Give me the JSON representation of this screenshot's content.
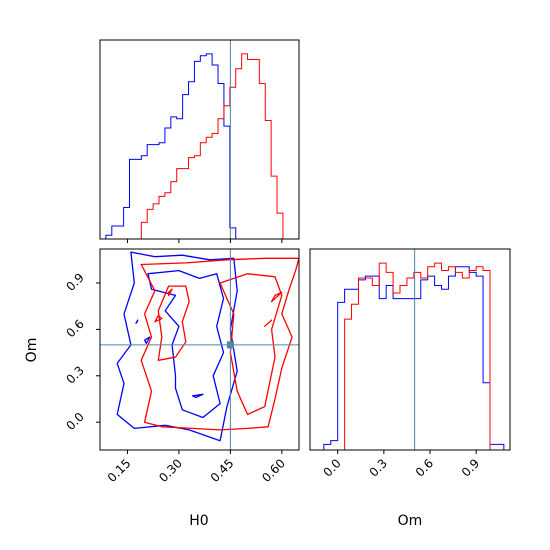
{
  "chart_data": {
    "type": "corner",
    "parameters": [
      "H0",
      "Om"
    ],
    "truth": {
      "H0": 0.45,
      "Om": 0.5
    },
    "colors": {
      "series_a": "#0000ff",
      "series_b": "#ff0000",
      "truth": "#4c86aa"
    },
    "axes": {
      "H0": {
        "range": [
          0.07,
          0.65
        ],
        "ticks": [
          0.15,
          0.3,
          0.45,
          0.6
        ],
        "tick_labels": [
          "0.15",
          "0.30",
          "0.45",
          "0.60"
        ]
      },
      "Om": {
        "range": [
          -0.18,
          1.12
        ],
        "ticks": [
          0.0,
          0.3,
          0.6,
          0.9
        ],
        "tick_labels": [
          "0.0",
          "0.3",
          "0.6",
          "0.9"
        ]
      }
    },
    "hist_H0": {
      "bin_edges": [
        0.07,
        0.0872,
        0.1044,
        0.1216,
        0.1388,
        0.156,
        0.1732,
        0.1904,
        0.2076,
        0.2248,
        0.242,
        0.2592,
        0.2764,
        0.2936,
        0.3108,
        0.328,
        0.3452,
        0.3624,
        0.3796,
        0.3968,
        0.414,
        0.4312,
        0.4484,
        0.4656,
        0.4828,
        0.5,
        0.5172,
        0.5344,
        0.5516,
        0.5688,
        0.586,
        0.6032,
        0.6204,
        0.6376
      ],
      "series": [
        {
          "color": "blue",
          "values": [
            0.0,
            0.02,
            0.07,
            0.07,
            0.17,
            0.43,
            0.43,
            0.45,
            0.51,
            0.51,
            0.52,
            0.6,
            0.66,
            0.65,
            0.78,
            0.85,
            0.96,
            0.99,
            1.0,
            0.94,
            0.84,
            0.61,
            0.06,
            0.0,
            0.0,
            0.0,
            0.0,
            0.0,
            0.0,
            0.0,
            0.0,
            0.0,
            0.0
          ]
        },
        {
          "color": "red",
          "values": [
            0.0,
            0.0,
            0.0,
            0.0,
            0.0,
            0.0,
            0.0,
            0.09,
            0.16,
            0.19,
            0.23,
            0.25,
            0.31,
            0.38,
            0.38,
            0.44,
            0.45,
            0.52,
            0.55,
            0.57,
            0.65,
            0.72,
            0.82,
            0.92,
            1.0,
            0.97,
            0.97,
            0.84,
            0.64,
            0.34,
            0.14,
            0.0,
            0.0
          ]
        }
      ]
    },
    "hist_Om": {
      "bin_edges": [
        -0.18,
        -0.135,
        -0.09,
        -0.045,
        0.0,
        0.045,
        0.09,
        0.135,
        0.18,
        0.225,
        0.27,
        0.315,
        0.36,
        0.405,
        0.45,
        0.495,
        0.54,
        0.585,
        0.63,
        0.675,
        0.72,
        0.765,
        0.81,
        0.855,
        0.9,
        0.945,
        0.99,
        1.035,
        1.08,
        1.125
      ],
      "series": [
        {
          "color": "blue",
          "values": [
            0.0,
            0.0,
            0.03,
            0.05,
            0.79,
            0.86,
            0.86,
            0.91,
            0.93,
            0.93,
            0.81,
            0.88,
            0.81,
            0.81,
            0.81,
            0.81,
            0.91,
            0.93,
            0.88,
            0.86,
            0.93,
            0.98,
            0.98,
            0.95,
            0.93,
            0.36,
            0.03,
            0.03,
            0.0
          ]
        },
        {
          "color": "red",
          "values": [
            0.0,
            0.0,
            0.0,
            0.0,
            0.0,
            0.7,
            0.78,
            0.92,
            0.92,
            0.88,
            1.0,
            0.95,
            0.84,
            0.88,
            0.92,
            0.95,
            0.92,
            0.98,
            1.0,
            0.96,
            0.98,
            0.95,
            0.92,
            0.96,
            0.98,
            0.96,
            0.0,
            0.0,
            0.0
          ]
        }
      ]
    },
    "contours_2d": [
      {
        "color": "blue",
        "level": "outer",
        "points": [
          [
            0.16,
            1.1
          ],
          [
            0.23,
            1.07
          ],
          [
            0.31,
            1.08
          ],
          [
            0.39,
            1.05
          ],
          [
            0.46,
            1.06
          ],
          [
            0.47,
            0.85
          ],
          [
            0.45,
            0.6
          ],
          [
            0.47,
            0.33
          ],
          [
            0.44,
            0.1
          ],
          [
            0.42,
            -0.12
          ],
          [
            0.33,
            -0.05
          ],
          [
            0.26,
            -0.02
          ],
          [
            0.17,
            -0.04
          ],
          [
            0.12,
            0.05
          ],
          [
            0.14,
            0.25
          ],
          [
            0.12,
            0.38
          ],
          [
            0.16,
            0.5
          ],
          [
            0.14,
            0.7
          ],
          [
            0.17,
            0.9
          ],
          [
            0.16,
            1.1
          ]
        ]
      },
      {
        "color": "blue",
        "level": "inner",
        "points": [
          [
            0.21,
            0.96
          ],
          [
            0.3,
            0.98
          ],
          [
            0.36,
            0.93
          ],
          [
            0.41,
            0.96
          ],
          [
            0.43,
            0.8
          ],
          [
            0.41,
            0.62
          ],
          [
            0.43,
            0.45
          ],
          [
            0.4,
            0.3
          ],
          [
            0.42,
            0.12
          ],
          [
            0.37,
            0.03
          ],
          [
            0.31,
            0.08
          ],
          [
            0.29,
            0.22
          ],
          [
            0.29,
            0.3
          ],
          [
            0.28,
            0.5
          ],
          [
            0.3,
            0.62
          ],
          [
            0.26,
            0.72
          ],
          [
            0.29,
            0.82
          ],
          [
            0.22,
            0.86
          ],
          [
            0.21,
            0.96
          ]
        ]
      },
      {
        "color": "red",
        "level": "outer",
        "points": [
          [
            0.19,
            1.02
          ],
          [
            0.32,
            1.03
          ],
          [
            0.44,
            1.05
          ],
          [
            0.55,
            1.06
          ],
          [
            0.65,
            1.06
          ],
          [
            0.64,
            0.98
          ],
          [
            0.62,
            0.85
          ],
          [
            0.6,
            0.7
          ],
          [
            0.63,
            0.55
          ],
          [
            0.6,
            0.35
          ],
          [
            0.58,
            0.15
          ],
          [
            0.56,
            -0.03
          ],
          [
            0.5,
            -0.04
          ],
          [
            0.42,
            -0.05
          ],
          [
            0.34,
            -0.04
          ],
          [
            0.25,
            -0.03
          ],
          [
            0.2,
            0.0
          ],
          [
            0.22,
            0.2
          ],
          [
            0.19,
            0.4
          ],
          [
            0.22,
            0.55
          ],
          [
            0.2,
            0.7
          ],
          [
            0.23,
            0.85
          ],
          [
            0.19,
            1.02
          ]
        ]
      },
      {
        "color": "red",
        "level": "inner",
        "points": [
          [
            0.42,
            0.9
          ],
          [
            0.5,
            0.96
          ],
          [
            0.58,
            0.94
          ],
          [
            0.6,
            0.82
          ],
          [
            0.57,
            0.6
          ],
          [
            0.58,
            0.42
          ],
          [
            0.55,
            0.1
          ],
          [
            0.5,
            0.05
          ],
          [
            0.47,
            0.2
          ],
          [
            0.45,
            0.45
          ],
          [
            0.46,
            0.7
          ],
          [
            0.44,
            0.8
          ],
          [
            0.42,
            0.9
          ]
        ]
      },
      {
        "color": "red",
        "level": "island",
        "points": [
          [
            0.29,
            0.42
          ],
          [
            0.32,
            0.52
          ],
          [
            0.31,
            0.65
          ],
          [
            0.33,
            0.78
          ],
          [
            0.32,
            0.88
          ],
          [
            0.27,
            0.88
          ],
          [
            0.24,
            0.72
          ],
          [
            0.25,
            0.55
          ],
          [
            0.24,
            0.4
          ],
          [
            0.29,
            0.42
          ]
        ]
      },
      {
        "color": "red",
        "level": "island",
        "points": [
          [
            0.23,
            0.65
          ],
          [
            0.25,
            0.67
          ],
          [
            0.24,
            0.69
          ],
          [
            0.23,
            0.65
          ]
        ]
      },
      {
        "color": "red",
        "level": "island",
        "points": [
          [
            0.27,
            0.82
          ],
          [
            0.28,
            0.86
          ],
          [
            0.27,
            0.84
          ],
          [
            0.27,
            0.82
          ]
        ]
      },
      {
        "color": "red",
        "level": "island",
        "points": [
          [
            0.57,
            0.78
          ],
          [
            0.6,
            0.84
          ],
          [
            0.58,
            0.82
          ],
          [
            0.57,
            0.78
          ]
        ]
      },
      {
        "color": "red",
        "level": "island",
        "points": [
          [
            0.55,
            0.62
          ],
          [
            0.57,
            0.66
          ],
          [
            0.56,
            0.64
          ],
          [
            0.55,
            0.62
          ]
        ]
      },
      {
        "color": "blue",
        "level": "island",
        "points": [
          [
            0.34,
            0.17
          ],
          [
            0.37,
            0.18
          ],
          [
            0.35,
            0.16
          ],
          [
            0.34,
            0.17
          ]
        ]
      },
      {
        "color": "blue",
        "level": "island",
        "points": [
          [
            0.175,
            0.64
          ],
          [
            0.18,
            0.66
          ],
          [
            0.178,
            0.65
          ],
          [
            0.175,
            0.64
          ]
        ]
      },
      {
        "color": "blue",
        "level": "island",
        "points": [
          [
            0.2,
            0.53
          ],
          [
            0.215,
            0.55
          ],
          [
            0.205,
            0.51
          ],
          [
            0.2,
            0.53
          ]
        ]
      }
    ],
    "xlabel": "H0",
    "ylabel": "Om",
    "xlabel_right": "Om"
  }
}
